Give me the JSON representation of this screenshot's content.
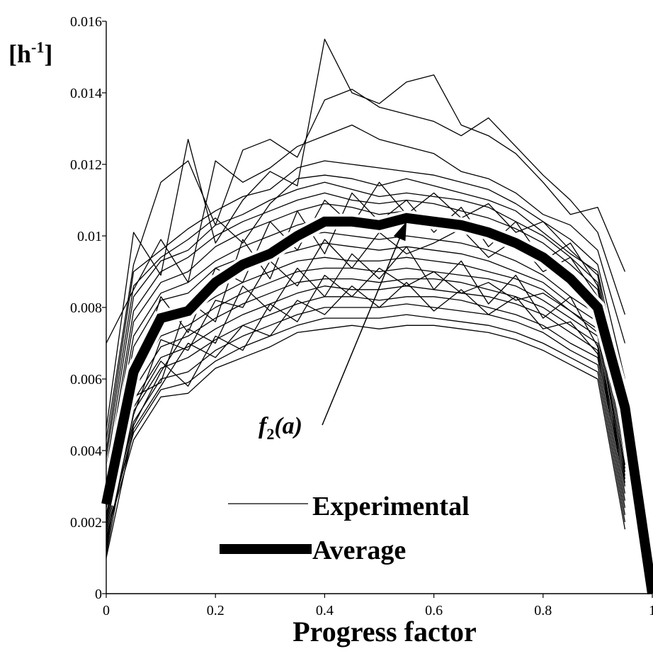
{
  "chart_data": {
    "type": "line",
    "title": "",
    "xlabel": "Progress factor",
    "ylabel": "[h",
    "ylabel_sup": "-1",
    "ylabel_close": "]",
    "xlim": [
      0,
      1
    ],
    "ylim": [
      0,
      0.016
    ],
    "x_ticks": [
      "0",
      "0.2",
      "0.4",
      "0.6",
      "0.8",
      "1"
    ],
    "y_ticks": [
      "0",
      "0.002",
      "0.004",
      "0.006",
      "0.008",
      "0.01",
      "0.012",
      "0.014",
      "0.016"
    ],
    "grid": false,
    "legend_position": "bottom-center",
    "legend": [
      {
        "label": "Experimental",
        "style": "thin"
      },
      {
        "label": "Average",
        "style": "thick"
      }
    ],
    "annotation": {
      "text_main": "f",
      "text_sub": "2",
      "text_rest": "(a)",
      "points_to": {
        "x": 0.55,
        "y": 0.0104
      }
    },
    "colors": {
      "lines": "#000000",
      "background": "#ffffff"
    },
    "average": {
      "name": "Average",
      "x": [
        0,
        0.05,
        0.1,
        0.15,
        0.2,
        0.25,
        0.3,
        0.35,
        0.4,
        0.45,
        0.5,
        0.55,
        0.6,
        0.65,
        0.7,
        0.75,
        0.8,
        0.85,
        0.9,
        0.95,
        1.0
      ],
      "y": [
        0.0025,
        0.0062,
        0.0077,
        0.0079,
        0.0087,
        0.0092,
        0.0095,
        0.01,
        0.0104,
        0.0104,
        0.0103,
        0.0105,
        0.0104,
        0.0103,
        0.0101,
        0.0098,
        0.0094,
        0.0088,
        0.008,
        0.0052,
        0.0
      ]
    },
    "experimental": [
      {
        "x": [
          0,
          0.05,
          0.1,
          0.15,
          0.2,
          0.25,
          0.3,
          0.35,
          0.4,
          0.45,
          0.5,
          0.55,
          0.6,
          0.65,
          0.7,
          0.75,
          0.8,
          0.85,
          0.9,
          0.95
        ],
        "y": [
          0.0046,
          0.0101,
          0.0089,
          0.0127,
          0.0098,
          0.011,
          0.0118,
          0.0114,
          0.0155,
          0.014,
          0.0137,
          0.0143,
          0.0145,
          0.0131,
          0.0128,
          0.0123,
          0.0115,
          0.0106,
          0.0108,
          0.009
        ]
      },
      {
        "x": [
          0,
          0.05,
          0.1,
          0.15,
          0.2,
          0.25,
          0.3,
          0.35,
          0.4,
          0.45,
          0.5,
          0.55,
          0.6,
          0.65,
          0.7,
          0.75,
          0.8,
          0.85,
          0.9,
          0.95
        ],
        "y": [
          0.0043,
          0.0092,
          0.0115,
          0.0121,
          0.0103,
          0.0124,
          0.0127,
          0.0122,
          0.0138,
          0.0141,
          0.0136,
          0.0134,
          0.0132,
          0.0128,
          0.0133,
          0.0125,
          0.0117,
          0.011,
          0.0101,
          0.0078
        ]
      },
      {
        "x": [
          0,
          0.05,
          0.1,
          0.15,
          0.2,
          0.25,
          0.3,
          0.35,
          0.4,
          0.45,
          0.5,
          0.55,
          0.6,
          0.65,
          0.7,
          0.75,
          0.8,
          0.85,
          0.9,
          0.95
        ],
        "y": [
          0.007,
          0.0085,
          0.0099,
          0.0087,
          0.0121,
          0.0115,
          0.0119,
          0.0125,
          0.0128,
          0.0131,
          0.0127,
          0.0125,
          0.0123,
          0.0118,
          0.0116,
          0.0112,
          0.0106,
          0.0103,
          0.0096,
          0.007
        ]
      },
      {
        "x": [
          0,
          0.05,
          0.1,
          0.15,
          0.2,
          0.25,
          0.3,
          0.35,
          0.4,
          0.45,
          0.5,
          0.55,
          0.6,
          0.65,
          0.7,
          0.75,
          0.8,
          0.85,
          0.9,
          0.95
        ],
        "y": [
          0.004,
          0.009,
          0.0096,
          0.0102,
          0.0107,
          0.0111,
          0.0113,
          0.0119,
          0.0121,
          0.012,
          0.0119,
          0.0118,
          0.0117,
          0.0115,
          0.0113,
          0.0109,
          0.0104,
          0.0099,
          0.0092,
          0.006
        ]
      },
      {
        "x": [
          0,
          0.05,
          0.1,
          0.15,
          0.2,
          0.25,
          0.3,
          0.35,
          0.4,
          0.45,
          0.5,
          0.55,
          0.6,
          0.65,
          0.7,
          0.75,
          0.8,
          0.85,
          0.9,
          0.95
        ],
        "y": [
          0.0038,
          0.0086,
          0.0094,
          0.0099,
          0.0105,
          0.0098,
          0.0109,
          0.0116,
          0.0117,
          0.0116,
          0.0114,
          0.0116,
          0.0114,
          0.0112,
          0.011,
          0.0107,
          0.0101,
          0.0095,
          0.009,
          0.0055
        ]
      },
      {
        "x": [
          0,
          0.05,
          0.1,
          0.15,
          0.2,
          0.25,
          0.3,
          0.35,
          0.4,
          0.45,
          0.5,
          0.55,
          0.6,
          0.65,
          0.7,
          0.75,
          0.8,
          0.85,
          0.9,
          0.95
        ],
        "y": [
          0.0035,
          0.0083,
          0.0093,
          0.0096,
          0.0103,
          0.0106,
          0.011,
          0.0113,
          0.0115,
          0.0113,
          0.0111,
          0.0112,
          0.0111,
          0.011,
          0.0108,
          0.0104,
          0.01,
          0.0094,
          0.0087,
          0.005
        ]
      },
      {
        "x": [
          0,
          0.05,
          0.1,
          0.15,
          0.2,
          0.25,
          0.3,
          0.35,
          0.4,
          0.45,
          0.5,
          0.55,
          0.6,
          0.65,
          0.7,
          0.75,
          0.8,
          0.85,
          0.9,
          0.95
        ],
        "y": [
          0.0032,
          0.0079,
          0.009,
          0.0094,
          0.01,
          0.0104,
          0.0107,
          0.011,
          0.0112,
          0.011,
          0.0109,
          0.011,
          0.0109,
          0.0107,
          0.0105,
          0.0102,
          0.0098,
          0.0092,
          0.0085,
          0.0045
        ]
      },
      {
        "x": [
          0,
          0.05,
          0.1,
          0.15,
          0.2,
          0.25,
          0.3,
          0.35,
          0.4,
          0.45,
          0.5,
          0.55,
          0.6,
          0.65,
          0.7,
          0.75,
          0.8,
          0.85,
          0.9,
          0.95
        ],
        "y": [
          0.003,
          0.0076,
          0.0087,
          0.009,
          0.0097,
          0.0101,
          0.0104,
          0.0107,
          0.0109,
          0.0108,
          0.0106,
          0.0107,
          0.0106,
          0.0104,
          0.0102,
          0.0099,
          0.0095,
          0.0089,
          0.0083,
          0.0042
        ]
      },
      {
        "x": [
          0,
          0.05,
          0.1,
          0.15,
          0.2,
          0.25,
          0.3,
          0.35,
          0.4,
          0.45,
          0.5,
          0.55,
          0.6,
          0.65,
          0.7,
          0.75,
          0.8,
          0.85,
          0.9,
          0.95
        ],
        "y": [
          0.0028,
          0.0072,
          0.0084,
          0.0087,
          0.0093,
          0.0097,
          0.01,
          0.0103,
          0.0105,
          0.0104,
          0.0103,
          0.0104,
          0.0103,
          0.0101,
          0.0099,
          0.0096,
          0.0092,
          0.0086,
          0.008,
          0.0038
        ]
      },
      {
        "x": [
          0,
          0.05,
          0.1,
          0.15,
          0.2,
          0.25,
          0.3,
          0.35,
          0.4,
          0.45,
          0.5,
          0.55,
          0.6,
          0.65,
          0.7,
          0.75,
          0.8,
          0.85,
          0.9,
          0.95
        ],
        "y": [
          0.0027,
          0.0069,
          0.0082,
          0.0084,
          0.0091,
          0.0094,
          0.0097,
          0.01,
          0.0101,
          0.01,
          0.0099,
          0.01,
          0.0099,
          0.0098,
          0.0096,
          0.0093,
          0.0089,
          0.0083,
          0.0078,
          0.0036
        ]
      },
      {
        "x": [
          0,
          0.05,
          0.1,
          0.15,
          0.2,
          0.25,
          0.3,
          0.35,
          0.4,
          0.45,
          0.5,
          0.55,
          0.6,
          0.65,
          0.7,
          0.75,
          0.8,
          0.85,
          0.9,
          0.95
        ],
        "y": [
          0.0025,
          0.0066,
          0.0078,
          0.0081,
          0.0087,
          0.0091,
          0.0094,
          0.0096,
          0.0098,
          0.0097,
          0.0096,
          0.0097,
          0.0096,
          0.0095,
          0.0093,
          0.009,
          0.0087,
          0.0081,
          0.0076,
          0.0034
        ]
      },
      {
        "x": [
          0,
          0.05,
          0.1,
          0.15,
          0.2,
          0.25,
          0.3,
          0.35,
          0.4,
          0.45,
          0.5,
          0.55,
          0.6,
          0.65,
          0.7,
          0.75,
          0.8,
          0.85,
          0.9,
          0.95
        ],
        "y": [
          0.0024,
          0.0063,
          0.0075,
          0.0078,
          0.0083,
          0.0087,
          0.009,
          0.0093,
          0.0094,
          0.0093,
          0.0093,
          0.0094,
          0.0093,
          0.0092,
          0.009,
          0.0088,
          0.0085,
          0.0079,
          0.0074,
          0.0032
        ]
      },
      {
        "x": [
          0,
          0.05,
          0.1,
          0.15,
          0.2,
          0.25,
          0.3,
          0.35,
          0.4,
          0.45,
          0.5,
          0.55,
          0.6,
          0.65,
          0.7,
          0.75,
          0.8,
          0.85,
          0.9,
          0.95
        ],
        "y": [
          0.0022,
          0.006,
          0.0072,
          0.0075,
          0.008,
          0.0084,
          0.0087,
          0.009,
          0.0091,
          0.0091,
          0.009,
          0.0091,
          0.009,
          0.0089,
          0.0088,
          0.0086,
          0.0082,
          0.0077,
          0.0072,
          0.003
        ]
      },
      {
        "x": [
          0,
          0.05,
          0.1,
          0.15,
          0.2,
          0.25,
          0.3,
          0.35,
          0.4,
          0.45,
          0.5,
          0.55,
          0.6,
          0.65,
          0.7,
          0.75,
          0.8,
          0.85,
          0.9,
          0.95
        ],
        "y": [
          0.0021,
          0.0057,
          0.0069,
          0.0072,
          0.0077,
          0.0081,
          0.0084,
          0.0087,
          0.0088,
          0.0088,
          0.0087,
          0.0088,
          0.0088,
          0.0087,
          0.0085,
          0.0083,
          0.008,
          0.0075,
          0.007,
          0.0028
        ]
      },
      {
        "x": [
          0,
          0.05,
          0.1,
          0.15,
          0.2,
          0.25,
          0.3,
          0.35,
          0.4,
          0.45,
          0.5,
          0.55,
          0.6,
          0.65,
          0.7,
          0.75,
          0.8,
          0.85,
          0.9,
          0.95
        ],
        "y": [
          0.002,
          0.0054,
          0.0066,
          0.0069,
          0.0074,
          0.0078,
          0.0081,
          0.0084,
          0.0086,
          0.0085,
          0.0085,
          0.0086,
          0.0085,
          0.0084,
          0.0083,
          0.0081,
          0.0078,
          0.0073,
          0.0068,
          0.0026
        ]
      },
      {
        "x": [
          0,
          0.05,
          0.1,
          0.15,
          0.2,
          0.25,
          0.3,
          0.35,
          0.4,
          0.45,
          0.5,
          0.55,
          0.6,
          0.65,
          0.7,
          0.75,
          0.8,
          0.85,
          0.9,
          0.95
        ],
        "y": [
          0.0019,
          0.0051,
          0.0063,
          0.0066,
          0.0071,
          0.0075,
          0.0078,
          0.0081,
          0.0083,
          0.0083,
          0.0082,
          0.0083,
          0.0083,
          0.0082,
          0.008,
          0.0078,
          0.0075,
          0.007,
          0.0066,
          0.0024
        ]
      },
      {
        "x": [
          0,
          0.05,
          0.1,
          0.15,
          0.2,
          0.25,
          0.3,
          0.35,
          0.4,
          0.45,
          0.5,
          0.55,
          0.6,
          0.65,
          0.7,
          0.75,
          0.8,
          0.85,
          0.9,
          0.95
        ],
        "y": [
          0.0018,
          0.0048,
          0.006,
          0.0062,
          0.0068,
          0.0072,
          0.0075,
          0.0078,
          0.008,
          0.008,
          0.008,
          0.0081,
          0.008,
          0.0079,
          0.0078,
          0.0076,
          0.0073,
          0.0068,
          0.0064,
          0.0022
        ]
      },
      {
        "x": [
          0,
          0.05,
          0.1,
          0.15,
          0.2,
          0.25,
          0.3,
          0.35,
          0.4,
          0.45,
          0.5,
          0.55,
          0.6,
          0.65,
          0.7,
          0.75,
          0.8,
          0.85,
          0.9,
          0.95
        ],
        "y": [
          0.0017,
          0.0045,
          0.0057,
          0.0059,
          0.0065,
          0.0069,
          0.0072,
          0.0075,
          0.0077,
          0.0077,
          0.0077,
          0.0078,
          0.0077,
          0.0076,
          0.0075,
          0.0073,
          0.007,
          0.0066,
          0.0062,
          0.002
        ]
      },
      {
        "x": [
          0,
          0.05,
          0.1,
          0.15,
          0.2,
          0.25,
          0.3,
          0.35,
          0.4,
          0.45,
          0.5,
          0.55,
          0.6,
          0.65,
          0.7,
          0.75,
          0.8,
          0.85,
          0.9,
          0.95
        ],
        "y": [
          0.0016,
          0.0043,
          0.0055,
          0.0056,
          0.0063,
          0.0066,
          0.0069,
          0.0073,
          0.0074,
          0.0075,
          0.0074,
          0.0075,
          0.0075,
          0.0074,
          0.0073,
          0.0071,
          0.0068,
          0.0064,
          0.006,
          0.0018
        ]
      },
      {
        "x": [
          0,
          0.05,
          0.1,
          0.15,
          0.2,
          0.25,
          0.3,
          0.35,
          0.4,
          0.45,
          0.5,
          0.55,
          0.6,
          0.65,
          0.7,
          0.75,
          0.8,
          0.85,
          0.9,
          0.95
        ],
        "y": [
          0.0015,
          0.0047,
          0.0062,
          0.0074,
          0.007,
          0.0086,
          0.0079,
          0.0091,
          0.0083,
          0.0095,
          0.0088,
          0.0097,
          0.0085,
          0.0093,
          0.0081,
          0.0089,
          0.0077,
          0.0083,
          0.0069,
          0.0033
        ]
      },
      {
        "x": [
          0,
          0.05,
          0.1,
          0.15,
          0.2,
          0.25,
          0.3,
          0.35,
          0.4,
          0.45,
          0.5,
          0.55,
          0.6,
          0.65,
          0.7,
          0.75,
          0.8,
          0.85,
          0.9,
          0.95
        ],
        "y": [
          0.0014,
          0.005,
          0.0071,
          0.0068,
          0.0082,
          0.008,
          0.0093,
          0.0086,
          0.0099,
          0.0091,
          0.0101,
          0.0095,
          0.0098,
          0.0102,
          0.0094,
          0.0099,
          0.009,
          0.0094,
          0.0083,
          0.004
        ]
      },
      {
        "x": [
          0,
          0.05,
          0.1,
          0.15,
          0.2,
          0.25,
          0.3,
          0.35,
          0.4,
          0.45,
          0.5,
          0.55,
          0.6,
          0.65,
          0.7,
          0.75,
          0.8,
          0.85,
          0.9,
          0.95
        ],
        "y": [
          0.0013,
          0.0055,
          0.0059,
          0.0082,
          0.0076,
          0.0099,
          0.0088,
          0.0107,
          0.0095,
          0.0112,
          0.0104,
          0.011,
          0.0101,
          0.0108,
          0.0097,
          0.0104,
          0.0093,
          0.0098,
          0.0086,
          0.0046
        ]
      },
      {
        "x": [
          0,
          0.05,
          0.1,
          0.15,
          0.2,
          0.25,
          0.3,
          0.35,
          0.4,
          0.45,
          0.5,
          0.55,
          0.6,
          0.65,
          0.7,
          0.75,
          0.8,
          0.85,
          0.9,
          0.95
        ],
        "y": [
          0.0012,
          0.0058,
          0.0083,
          0.0073,
          0.0091,
          0.0087,
          0.0104,
          0.0096,
          0.011,
          0.0103,
          0.0115,
          0.0106,
          0.0112,
          0.0105,
          0.0109,
          0.0101,
          0.0104,
          0.0096,
          0.0089,
          0.0049
        ]
      },
      {
        "x": [
          0,
          0.05,
          0.1,
          0.15,
          0.2,
          0.25,
          0.3,
          0.35,
          0.4,
          0.45,
          0.5,
          0.55,
          0.6,
          0.65,
          0.7,
          0.75,
          0.8,
          0.85,
          0.9,
          0.95
        ],
        "y": [
          0.0011,
          0.0052,
          0.0065,
          0.0058,
          0.0072,
          0.0068,
          0.0081,
          0.0076,
          0.0089,
          0.0083,
          0.0091,
          0.0086,
          0.009,
          0.0084,
          0.0087,
          0.0082,
          0.0084,
          0.0079,
          0.0073,
          0.0035
        ]
      },
      {
        "x": [
          0,
          0.05,
          0.1,
          0.15,
          0.2,
          0.25,
          0.3,
          0.35,
          0.4,
          0.45,
          0.5,
          0.55,
          0.6,
          0.65,
          0.7,
          0.75,
          0.8,
          0.85,
          0.9,
          0.95
        ],
        "y": [
          0.001,
          0.0046,
          0.0058,
          0.007,
          0.0066,
          0.0075,
          0.0072,
          0.0082,
          0.0078,
          0.0086,
          0.008,
          0.0087,
          0.0079,
          0.0085,
          0.0078,
          0.0083,
          0.0074,
          0.0076,
          0.0067,
          0.0031
        ]
      }
    ]
  }
}
